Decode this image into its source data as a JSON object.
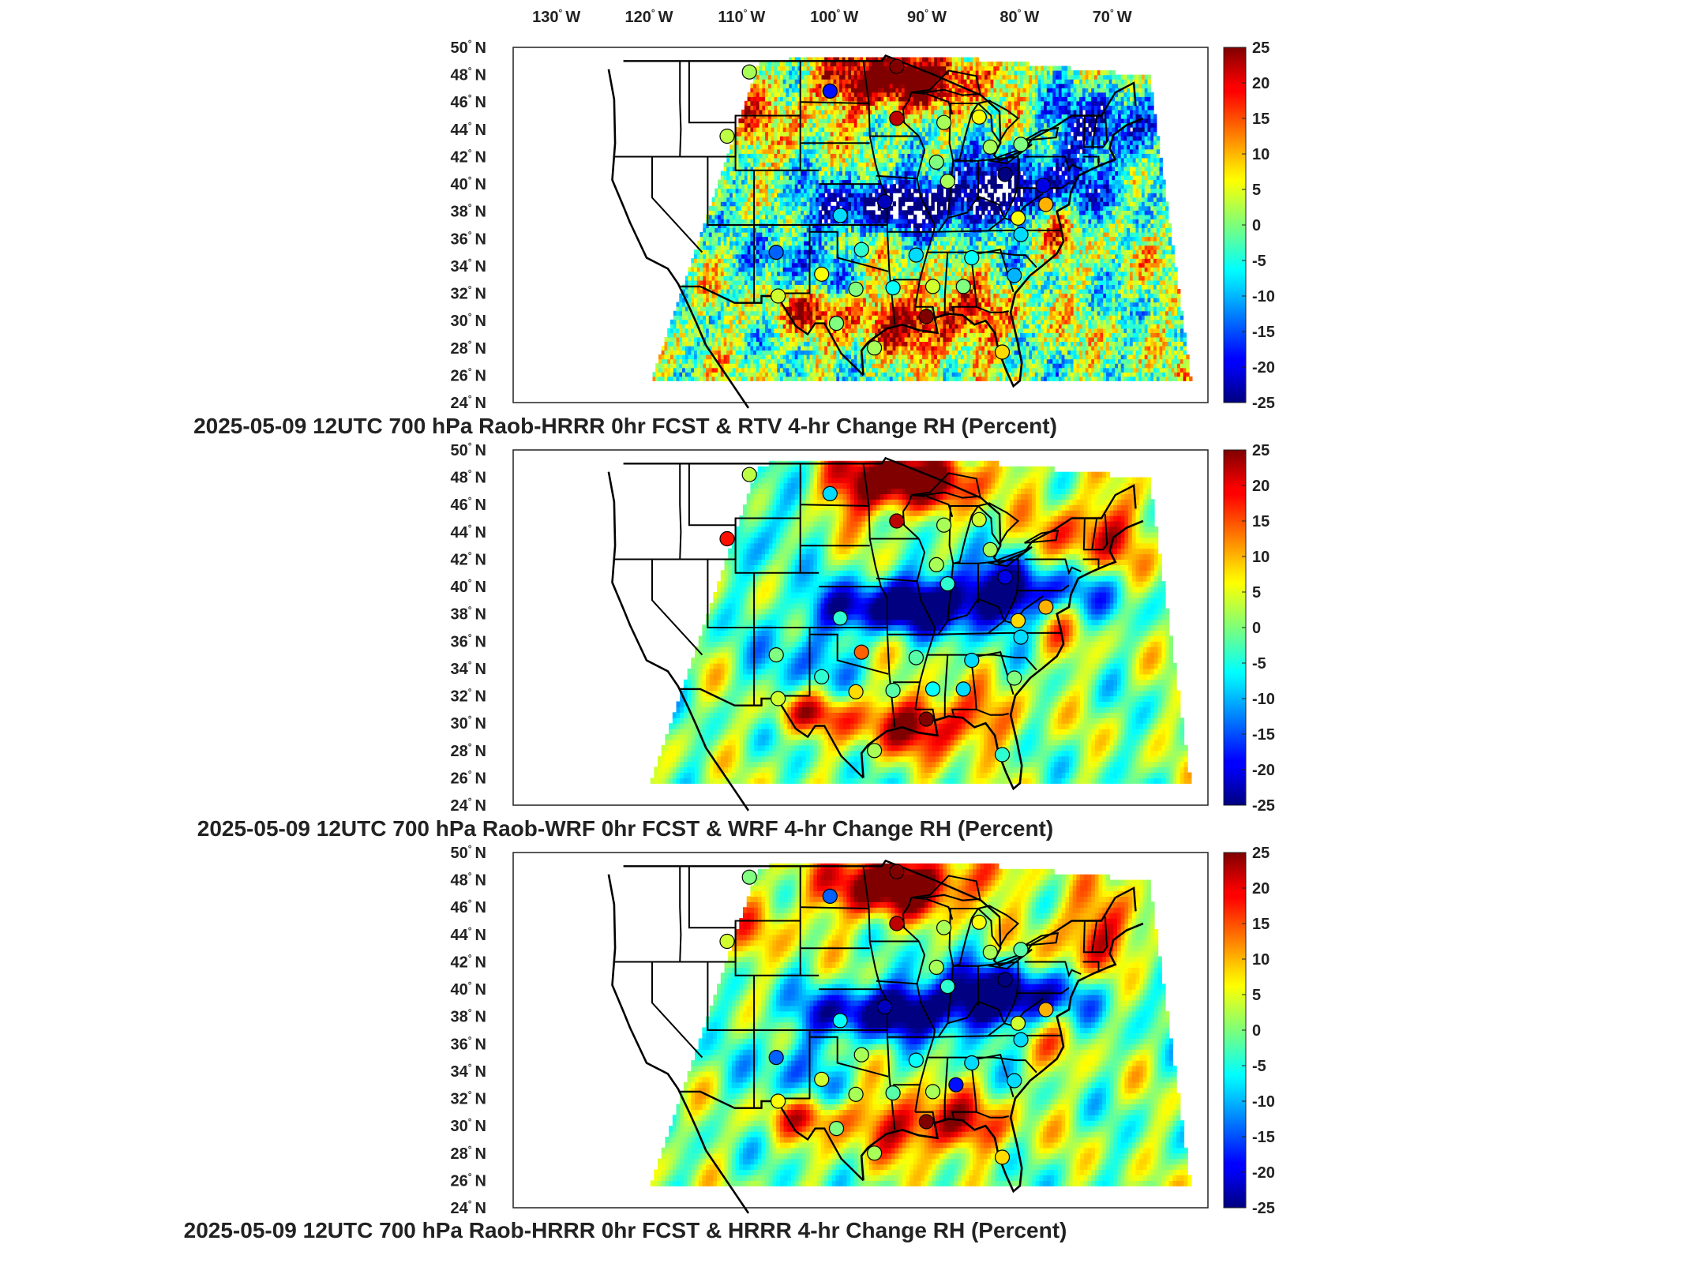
{
  "figure": {
    "lon_ticks": [
      "130",
      "120",
      "110",
      "100",
      "90",
      "80",
      "70"
    ],
    "lon_suffix": "W",
    "lat_ticks": [
      "50",
      "48",
      "46",
      "44",
      "42",
      "40",
      "38",
      "36",
      "34",
      "32",
      "30",
      "28",
      "26",
      "24"
    ],
    "lat_suffix": "N",
    "degree_symbol": "°",
    "colorbar": {
      "ticks": [
        "25",
        "20",
        "15",
        "10",
        "5",
        "0",
        "-5",
        "-10",
        "-15",
        "-20",
        "-25"
      ],
      "colormap": "jet",
      "range": [
        -25,
        25
      ]
    },
    "panels": [
      {
        "title": "2025-05-09 12UTC 700 hPa Raob-HRRR 0hr FCST & RTV 4-hr Change RH (Percent)",
        "field_style": "pixelated",
        "seed": 11,
        "raob_markers": [
          {
            "lon": -109.5,
            "lat": 48.2,
            "value": 2
          },
          {
            "lon": -100.8,
            "lat": 46.8,
            "value": -18
          },
          {
            "lon": -93.6,
            "lat": 48.6,
            "value": 28
          },
          {
            "lon": -93.6,
            "lat": 44.8,
            "value": 22
          },
          {
            "lon": -88.5,
            "lat": 44.5,
            "value": 2
          },
          {
            "lon": -84.7,
            "lat": 44.9,
            "value": 6
          },
          {
            "lon": -83.5,
            "lat": 42.7,
            "value": 2
          },
          {
            "lon": -111.9,
            "lat": 43.5,
            "value": 3
          },
          {
            "lon": -80.2,
            "lat": 42.9,
            "value": 0
          },
          {
            "lon": -89.3,
            "lat": 41.6,
            "value": 0
          },
          {
            "lon": -88.1,
            "lat": 40.2,
            "value": 2
          },
          {
            "lon": -81.9,
            "lat": 40.7,
            "value": -25
          },
          {
            "lon": -77.8,
            "lat": 39.9,
            "value": -20
          },
          {
            "lon": -99.7,
            "lat": 37.7,
            "value": -8
          },
          {
            "lon": -94.9,
            "lat": 38.7,
            "value": -22
          },
          {
            "lon": -80.5,
            "lat": 37.5,
            "value": 6
          },
          {
            "lon": -80.2,
            "lat": 36.3,
            "value": -8
          },
          {
            "lon": -106.6,
            "lat": 35.0,
            "value": -14
          },
          {
            "lon": -97.4,
            "lat": 35.2,
            "value": -4
          },
          {
            "lon": -91.5,
            "lat": 34.8,
            "value": -8
          },
          {
            "lon": -85.5,
            "lat": 34.6,
            "value": -6
          },
          {
            "lon": -101.7,
            "lat": 33.4,
            "value": 6
          },
          {
            "lon": -94.0,
            "lat": 32.4,
            "value": -6
          },
          {
            "lon": -89.7,
            "lat": 32.5,
            "value": 4
          },
          {
            "lon": -86.4,
            "lat": 32.5,
            "value": 0
          },
          {
            "lon": -80.9,
            "lat": 33.3,
            "value": -10
          },
          {
            "lon": -106.4,
            "lat": 31.8,
            "value": 4
          },
          {
            "lon": -98.0,
            "lat": 32.3,
            "value": 0
          },
          {
            "lon": -90.4,
            "lat": 30.3,
            "value": 30
          },
          {
            "lon": -96.0,
            "lat": 28.0,
            "value": 2
          },
          {
            "lon": -82.2,
            "lat": 27.7,
            "value": 8
          },
          {
            "lon": -100.1,
            "lat": 29.8,
            "value": 0
          },
          {
            "lon": -77.5,
            "lat": 38.5,
            "value": 10
          }
        ]
      },
      {
        "title": "2025-05-09 12UTC 700 hPa Raob-WRF 0hr FCST & WRF 4-hr Change RH (Percent)",
        "field_style": "smooth",
        "seed": 23,
        "raob_markers": [
          {
            "lon": -109.5,
            "lat": 48.2,
            "value": 3
          },
          {
            "lon": -100.8,
            "lat": 46.8,
            "value": -8
          },
          {
            "lon": -93.6,
            "lat": 44.8,
            "value": 22
          },
          {
            "lon": -88.5,
            "lat": 44.5,
            "value": 2
          },
          {
            "lon": -84.7,
            "lat": 44.9,
            "value": 4
          },
          {
            "lon": -83.5,
            "lat": 42.7,
            "value": 2
          },
          {
            "lon": -111.9,
            "lat": 43.5,
            "value": 18
          },
          {
            "lon": -89.3,
            "lat": 41.6,
            "value": 2
          },
          {
            "lon": -88.1,
            "lat": 40.2,
            "value": -4
          },
          {
            "lon": -81.9,
            "lat": 40.7,
            "value": -20
          },
          {
            "lon": -99.7,
            "lat": 37.7,
            "value": -4
          },
          {
            "lon": -80.5,
            "lat": 37.5,
            "value": 8
          },
          {
            "lon": -80.2,
            "lat": 36.3,
            "value": -8
          },
          {
            "lon": -106.6,
            "lat": 35.0,
            "value": 0
          },
          {
            "lon": -97.4,
            "lat": 35.2,
            "value": 14
          },
          {
            "lon": -91.5,
            "lat": 34.8,
            "value": -2
          },
          {
            "lon": -85.5,
            "lat": 34.6,
            "value": -8
          },
          {
            "lon": -101.7,
            "lat": 33.4,
            "value": -4
          },
          {
            "lon": -94.0,
            "lat": 32.4,
            "value": -2
          },
          {
            "lon": -89.7,
            "lat": 32.5,
            "value": -6
          },
          {
            "lon": -86.4,
            "lat": 32.5,
            "value": -8
          },
          {
            "lon": -80.9,
            "lat": 33.3,
            "value": 0
          },
          {
            "lon": -106.4,
            "lat": 31.8,
            "value": 4
          },
          {
            "lon": -98.0,
            "lat": 32.3,
            "value": 8
          },
          {
            "lon": -90.4,
            "lat": 30.3,
            "value": 30
          },
          {
            "lon": -96.0,
            "lat": 28.0,
            "value": 2
          },
          {
            "lon": -82.2,
            "lat": 27.7,
            "value": -4
          },
          {
            "lon": -77.5,
            "lat": 38.5,
            "value": 10
          }
        ]
      },
      {
        "title": "2025-05-09 12UTC 700 hPa Raob-HRRR 0hr FCST & HRRR 4-hr Change RH (Percent)",
        "field_style": "smooth",
        "seed": 37,
        "raob_markers": [
          {
            "lon": -109.5,
            "lat": 48.2,
            "value": 0
          },
          {
            "lon": -100.8,
            "lat": 46.8,
            "value": -14
          },
          {
            "lon": -93.6,
            "lat": 48.6,
            "value": 28
          },
          {
            "lon": -93.6,
            "lat": 44.8,
            "value": 22
          },
          {
            "lon": -88.5,
            "lat": 44.5,
            "value": 2
          },
          {
            "lon": -84.7,
            "lat": 44.9,
            "value": 6
          },
          {
            "lon": -83.5,
            "lat": 42.7,
            "value": 2
          },
          {
            "lon": -111.9,
            "lat": 43.5,
            "value": 4
          },
          {
            "lon": -80.2,
            "lat": 42.9,
            "value": -2
          },
          {
            "lon": -89.3,
            "lat": 41.6,
            "value": 2
          },
          {
            "lon": -88.1,
            "lat": 40.2,
            "value": -4
          },
          {
            "lon": -81.9,
            "lat": 40.7,
            "value": -25
          },
          {
            "lon": -99.7,
            "lat": 37.7,
            "value": -6
          },
          {
            "lon": -94.9,
            "lat": 38.7,
            "value": -22
          },
          {
            "lon": -80.5,
            "lat": 37.5,
            "value": 4
          },
          {
            "lon": -80.2,
            "lat": 36.3,
            "value": -8
          },
          {
            "lon": -106.6,
            "lat": 35.0,
            "value": -14
          },
          {
            "lon": -97.4,
            "lat": 35.2,
            "value": 2
          },
          {
            "lon": -91.5,
            "lat": 34.8,
            "value": -6
          },
          {
            "lon": -85.5,
            "lat": 34.6,
            "value": -8
          },
          {
            "lon": -87.2,
            "lat": 33.0,
            "value": -18
          },
          {
            "lon": -101.7,
            "lat": 33.4,
            "value": 4
          },
          {
            "lon": -94.0,
            "lat": 32.4,
            "value": -2
          },
          {
            "lon": -89.7,
            "lat": 32.5,
            "value": 2
          },
          {
            "lon": -80.9,
            "lat": 33.3,
            "value": -8
          },
          {
            "lon": -106.4,
            "lat": 31.8,
            "value": 6
          },
          {
            "lon": -98.0,
            "lat": 32.3,
            "value": 2
          },
          {
            "lon": -90.4,
            "lat": 30.3,
            "value": 30
          },
          {
            "lon": -96.0,
            "lat": 28.0,
            "value": 2
          },
          {
            "lon": -82.2,
            "lat": 27.7,
            "value": 8
          },
          {
            "lon": -100.1,
            "lat": 29.8,
            "value": 0
          },
          {
            "lon": -77.5,
            "lat": 38.5,
            "value": 10
          }
        ]
      }
    ]
  }
}
